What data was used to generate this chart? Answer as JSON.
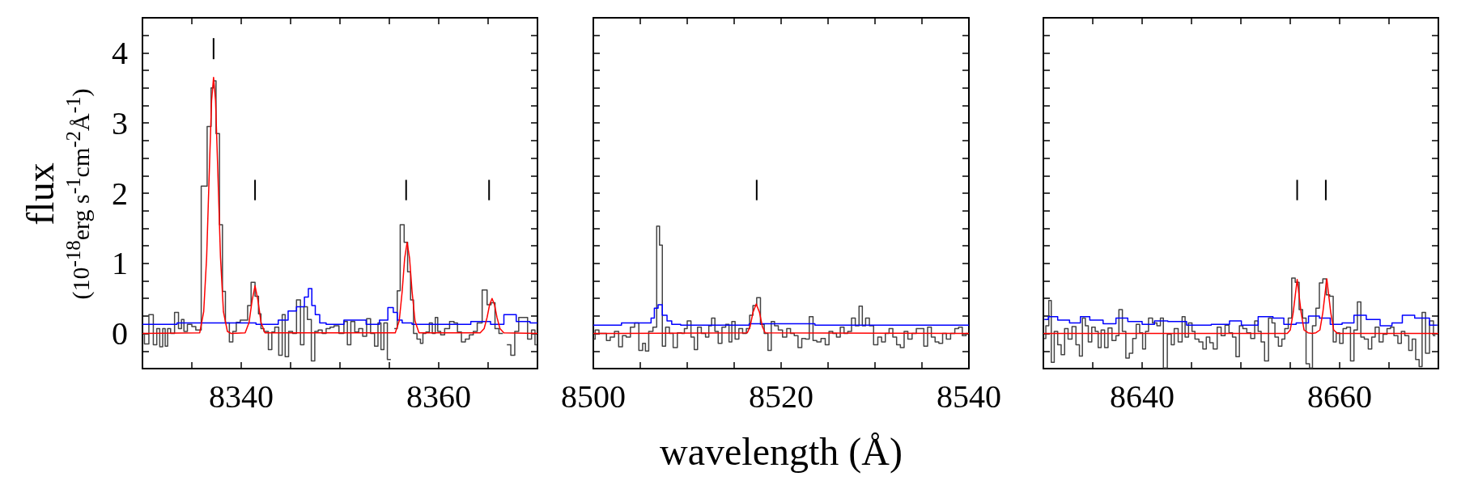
{
  "chart_data": [
    {
      "type": "step",
      "ylabel": "flux\n(10$^{-18}$erg s$^{-1}$cm$^{-2}$Å$^{-1}$)",
      "xlim": [
        8330,
        8370
      ],
      "xticks": [
        {
          "value": 8330,
          "label": null
        },
        {
          "value": 8335,
          "label": null
        },
        8340,
        {
          "value": 8345,
          "label": null
        },
        {
          "value": 8350,
          "label": null
        },
        {
          "value": 8355,
          "label": null
        },
        8360,
        {
          "value": 8365,
          "label": null
        },
        {
          "value": 8370,
          "label": null
        }
      ],
      "ylim": [
        -0.5,
        4.5
      ],
      "yticks": [
        {
          "value": -0.25,
          "label": null
        },
        0,
        {
          "value": 0.25,
          "label": null
        },
        {
          "value": 0.5,
          "label": null
        },
        {
          "value": 0.75,
          "label": null
        },
        1,
        {
          "value": 1.25,
          "label": null
        },
        {
          "value": 1.5,
          "label": null
        },
        {
          "value": 1.75,
          "label": null
        },
        2,
        {
          "value": 2.25,
          "label": null
        },
        {
          "value": 2.5,
          "label": null
        },
        {
          "value": 2.75,
          "label": null
        },
        3,
        {
          "value": 3.25,
          "label": null
        },
        {
          "value": 3.5,
          "label": null
        },
        {
          "value": 3.75,
          "label": null
        },
        4,
        {
          "value": 4.25,
          "label": null
        }
      ],
      "series": [
        {
          "type": "step",
          "color": "#444444",
          "x": [
            8330.0,
            8330.4,
            8330.9,
            8331.3,
            8331.6,
            8331.9,
            8332.2,
            8332.4,
            8332.7,
            8333.0,
            8333.5,
            8333.8,
            8334.1,
            8334.3,
            8334.8,
            8335.2,
            8335.6,
            8336.3,
            8336.8,
            8337.1,
            8337.3,
            8337.6,
            8338.0,
            8338.2,
            8338.6,
            8339.0,
            8339.3,
            8339.7,
            8340.1,
            8340.5,
            8340.8,
            8341.2,
            8341.6,
            8341.9,
            8342.1,
            8342.5,
            8343.0,
            8343.2,
            8343.6,
            8344.0,
            8344.3,
            8344.6,
            8345.0,
            8345.4,
            8345.8,
            8346.2,
            8346.5,
            8346.9,
            8347.3,
            8347.6,
            8348.0,
            8348.4,
            8348.8,
            8349.2,
            8349.6,
            8350.2,
            8350.6,
            8350.9,
            8351.3,
            8351.7,
            8352.1,
            8352.5,
            8352.9,
            8353.3,
            8353.7,
            8354.0,
            8354.3,
            8354.6,
            8355.0,
            8355.3,
            8355.7,
            8355.9,
            8356.3,
            8356.7,
            8357.0,
            8357.3,
            8357.6,
            8358.0,
            8358.3,
            8358.5,
            8358.9,
            8359.2,
            8359.5,
            8359.8,
            8360.0,
            8360.4,
            8360.8,
            8361.4,
            8361.7,
            8362.1,
            8362.5,
            8362.9,
            8363.3,
            8363.7,
            8364.1,
            8364.7,
            8365.1,
            8365.5,
            8365.9,
            8366.3,
            8366.7,
            8367.1,
            8367.5,
            8367.9,
            8368.3,
            8368.8,
            8369.2,
            8369.6,
            8369.9
          ],
          "values": [
            0,
            -0.15,
            0.27,
            -0.16,
            0.07,
            -0.19,
            0.07,
            -0.18,
            0.07,
            0,
            0.3,
            0.07,
            0.2,
            0.03,
            0.13,
            0.1,
            0.05,
            2.1,
            2.95,
            3.5,
            3.6,
            2.85,
            1.55,
            0.6,
            0.15,
            -0.12,
            0.03,
            0.16,
            0.19,
            0.19,
            0.4,
            0.73,
            0.53,
            0.28,
            0.07,
            0.03,
            -0.23,
            0.02,
            0.09,
            -0.31,
            0.27,
            -0.33,
            0.03,
            0,
            0.48,
            -0.16,
            0.38,
            0.2,
            -0.39,
            0.03,
            0.05,
            0,
            0.07,
            0.09,
            0.11,
            0,
            0.17,
            -0.16,
            0.17,
            0.02,
            0.07,
            -0.04,
            0.21,
            0,
            -0.18,
            0.15,
            -0.23,
            0.15,
            -0.37,
            null,
            0.07,
            0.61,
            1.55,
            1.3,
            0.88,
            0.48,
            0,
            -0.08,
            -0.14,
            0,
            0.02,
            0.15,
            0,
            0.23,
            0.03,
            -0.02,
            0.07,
            0.17,
            0.15,
            0.02,
            -0.12,
            -0.08,
            -0.02,
            0.03,
            0.15,
            0.62,
            0.41,
            0.44,
            0.07,
            0,
            null,
            -0.16,
            -0.31,
            0.03,
            0.23,
            0.23,
            -0.08,
            0.05,
            -0.16
          ]
        },
        {
          "type": "step",
          "color": "#0000ff",
          "x": [
            8330,
            8337,
            8340,
            8343,
            8344.5,
            8345,
            8346.2,
            8346.6,
            8347,
            8347.3,
            8347.7,
            8348.2,
            8349,
            8351.8,
            8353.5,
            8354.5,
            8355.2,
            8355.6,
            8356,
            8356.6,
            8358,
            8362,
            8364.5,
            8366,
            8367.2,
            8368.5,
            8370
          ],
          "values": [
            0.13,
            0.15,
            0.15,
            0.13,
            0.19,
            0.32,
            0.38,
            0.52,
            0.64,
            0.4,
            0.27,
            0.15,
            0.13,
            0.19,
            0.13,
            0.19,
            0.37,
            0.3,
            0.19,
            0.15,
            0.13,
            0.13,
            0.17,
            0.13,
            0.27,
            0.17,
            0.15
          ]
        },
        {
          "type": "line",
          "color": "#ff0000",
          "x": [
            8330,
            8335.8,
            8336.2,
            8336.5,
            8336.8,
            8337.0,
            8337.2,
            8337.4,
            8337.6,
            8337.9,
            8338.2,
            8338.6,
            8339,
            8340.4,
            8340.8,
            8341.1,
            8341.4,
            8341.7,
            8342.0,
            8342.4,
            8355.6,
            8356.0,
            8356.3,
            8356.55,
            8356.8,
            8357.05,
            8357.3,
            8357.6,
            8358.0,
            8364.2,
            8364.6,
            8364.9,
            8365.15,
            8365.4,
            8365.65,
            8365.9,
            8366.2,
            8366.6,
            8370
          ],
          "values": [
            0,
            0.01,
            0.31,
            1.09,
            2.45,
            3.32,
            3.65,
            3.32,
            2.45,
            1.09,
            0.31,
            0.03,
            0,
            0.01,
            0.16,
            0.47,
            0.68,
            0.47,
            0.16,
            0.01,
            0.01,
            0.18,
            0.6,
            1.07,
            1.3,
            1.07,
            0.6,
            0.18,
            0.01,
            0.01,
            0.07,
            0.23,
            0.41,
            0.5,
            0.41,
            0.23,
            0.07,
            0.01,
            0
          ]
        },
        {
          "type": "line",
          "color": "#000000",
          "x": [
            8337.2,
            8337.2
          ],
          "values": [
            3.91,
            4.21
          ]
        },
        {
          "type": "line",
          "color": "#000000",
          "x": [
            8341.4,
            8341.4
          ],
          "values": [
            1.9,
            2.19
          ]
        },
        {
          "type": "line",
          "color": "#000000",
          "x": [
            8356.7,
            8356.7
          ],
          "values": [
            1.9,
            2.19
          ]
        },
        {
          "type": "line",
          "color": "#000000",
          "x": [
            8365.1,
            8365.1
          ],
          "values": [
            1.9,
            2.19
          ]
        }
      ]
    },
    {
      "type": "step",
      "xlabel": "wavelength (Å)",
      "tick_labels": "x",
      "xlim": [
        8500,
        8540
      ],
      "xticks": [
        8500,
        {
          "value": 8505,
          "label": null
        },
        {
          "value": 8510,
          "label": null
        },
        {
          "value": 8515,
          "label": null
        },
        8520,
        {
          "value": 8525,
          "label": null
        },
        {
          "value": 8530,
          "label": null
        },
        {
          "value": 8535,
          "label": null
        },
        8540
      ],
      "ylim": [
        -0.5,
        4.5
      ],
      "yticks": [
        {
          "value": -0.25,
          "label": null
        },
        {
          "value": 0,
          "label": null
        },
        {
          "value": 0.25,
          "label": null
        },
        {
          "value": 0.5,
          "label": null
        },
        {
          "value": 0.75,
          "label": null
        },
        {
          "value": 1,
          "label": null
        },
        {
          "value": 1.25,
          "label": null
        },
        {
          "value": 1.5,
          "label": null
        },
        {
          "value": 1.75,
          "label": null
        },
        {
          "value": 2,
          "label": null
        },
        {
          "value": 2.25,
          "label": null
        },
        {
          "value": 2.5,
          "label": null
        },
        {
          "value": 2.75,
          "label": null
        },
        {
          "value": 3,
          "label": null
        },
        {
          "value": 3.25,
          "label": null
        },
        {
          "value": 3.5,
          "label": null
        },
        {
          "value": 3.75,
          "label": null
        },
        {
          "value": 4,
          "label": null
        },
        {
          "value": 4.25,
          "label": null
        }
      ],
      "series": [
        {
          "type": "step",
          "color": "#444444",
          "x": [
            8500.0,
            8500.4,
            8500.8,
            8501.2,
            8501.6,
            8502.0,
            8502.5,
            8502.9,
            8503.3,
            8503.7,
            8504.2,
            8504.6,
            8505.1,
            8505.4,
            8505.7,
            8506.1,
            8506.6,
            8506.9,
            8507.2,
            8507.5,
            8507.9,
            8508.3,
            8508.7,
            8509.2,
            8509.6,
            8509.8,
            8510.2,
            8510.6,
            8510.9,
            8511.3,
            8511.7,
            8512.2,
            8512.4,
            8512.8,
            8513.1,
            8513.5,
            8513.9,
            8514.3,
            8514.6,
            8514.9,
            8515.3,
            8515.7,
            8516.1,
            8516.5,
            8516.8,
            8517.2,
            8517.6,
            8518.0,
            8518.4,
            8518.8,
            8519.1,
            8519.5,
            8519.9,
            8520.4,
            8520.8,
            8521.2,
            8521.6,
            8522.0,
            8522.4,
            8522.8,
            8523.2,
            8523.6,
            8524.0,
            8524.5,
            8524.9,
            8525.3,
            8525.7,
            8526.1,
            8526.5,
            8526.9,
            8527.3,
            8527.7,
            8528.1,
            8528.5,
            8528.8,
            8529.2,
            8529.6,
            8530.1,
            8530.5,
            8530.9,
            8531.3,
            8531.7,
            8532.1,
            8532.5,
            8532.9,
            8533.3,
            8533.7,
            8534.2,
            8534.6,
            8535.0,
            8535.4,
            8535.8,
            8536.2,
            8536.6,
            8537.0,
            8537.4,
            8537.8,
            8538.3,
            8538.7,
            8539.1,
            8539.5,
            8539.9
          ],
          "values": [
            -0.08,
            0.05,
            0,
            0,
            -0.1,
            -0.05,
            0.03,
            -0.19,
            -0.03,
            -0.05,
            0.09,
            0.15,
            -0.24,
            -0.14,
            -0.25,
            0.03,
            0.09,
            1.53,
            1.26,
            -0.18,
            0.09,
            0,
            -0.2,
            0.01,
            0,
            0.07,
            0.18,
            -0.05,
            -0.23,
            0.09,
            0,
            -0.05,
            0.11,
            0.22,
            0.03,
            -0.14,
            0.09,
            0.13,
            -0.12,
            0.17,
            -0.08,
            0.07,
            0,
            0.07,
            0.26,
            0.4,
            0.51,
            0.13,
            0,
            -0.24,
            0.17,
            0.11,
            0.05,
            -0.05,
            0.07,
            0,
            -0.03,
            -0.2,
            -0.07,
            -0.08,
            0.24,
            -0.1,
            -0.12,
            -0.07,
            -0.16,
            0.03,
            0,
            -0.05,
            0.09,
            0,
            0.03,
            0.22,
            0.11,
            0.39,
            0.11,
            0.22,
            0.11,
            -0.16,
            -0.05,
            -0.12,
            0,
            0.07,
            -0.05,
            -0.16,
            -0.2,
            0.03,
            -0.08,
            0,
            0.07,
            0.07,
            -0.18,
            0.09,
            -0.05,
            -0.12,
            -0.14,
            0,
            -0.08,
            0,
            0.07,
            0.09,
            -0.03,
            0
          ]
        },
        {
          "type": "step",
          "color": "#0000ff",
          "x": [
            8500,
            8506,
            8506.3,
            8506.7,
            8507.1,
            8507.6,
            8508.1,
            8508.6,
            8510,
            8523.2,
            8524,
            8540
          ],
          "values": [
            0.12,
            0.15,
            0.22,
            0.36,
            0.41,
            0.26,
            0.18,
            0.13,
            0.12,
            0.14,
            0.12,
            0.12
          ]
        },
        {
          "type": "line",
          "color": "#ff0000",
          "x": [
            8500,
            8516.4,
            8516.7,
            8517.0,
            8517.35,
            8517.7,
            8518.0,
            8518.3,
            8540
          ],
          "values": [
            0,
            0.01,
            0.1,
            0.3,
            0.42,
            0.3,
            0.1,
            0.01,
            0
          ]
        },
        {
          "type": "line",
          "color": "#000000",
          "x": [
            8517.4,
            8517.4
          ],
          "values": [
            1.9,
            2.19
          ]
        }
      ]
    },
    {
      "type": "step",
      "tick_labels": "x",
      "xlim": [
        8630,
        8670
      ],
      "xticks": [
        {
          "value": 8630,
          "label": null
        },
        {
          "value": 8635,
          "label": null
        },
        8640,
        {
          "value": 8645,
          "label": null
        },
        {
          "value": 8650,
          "label": null
        },
        {
          "value": 8655,
          "label": null
        },
        8660,
        {
          "value": 8665,
          "label": null
        },
        {
          "value": 8670,
          "label": null
        }
      ],
      "ylim": [
        -0.5,
        4.5
      ],
      "yticks": [
        {
          "value": -0.25,
          "label": null
        },
        {
          "value": 0,
          "label": null
        },
        {
          "value": 0.25,
          "label": null
        },
        {
          "value": 0.5,
          "label": null
        },
        {
          "value": 0.75,
          "label": null
        },
        {
          "value": 1,
          "label": null
        },
        {
          "value": 1.25,
          "label": null
        },
        {
          "value": 1.5,
          "label": null
        },
        {
          "value": 1.75,
          "label": null
        },
        {
          "value": 2,
          "label": null
        },
        {
          "value": 2.25,
          "label": null
        },
        {
          "value": 2.5,
          "label": null
        },
        {
          "value": 2.75,
          "label": null
        },
        {
          "value": 3,
          "label": null
        },
        {
          "value": 3.25,
          "label": null
        },
        {
          "value": 3.5,
          "label": null
        },
        {
          "value": 3.75,
          "label": null
        },
        {
          "value": 4,
          "label": null
        },
        {
          "value": 4.25,
          "label": null
        }
      ],
      "series": [
        {
          "type": "step",
          "color": "#444444",
          "x": [
            8630.1,
            8630.4,
            8630.7,
            8630.9,
            8631.3,
            8631.6,
            8632.0,
            8632.3,
            8632.7,
            8633.1,
            8633.5,
            8633.8,
            8634.1,
            8634.4,
            8634.7,
            8635.1,
            8635.4,
            8635.7,
            8636.0,
            8636.4,
            8636.7,
            8637.2,
            8637.5,
            8637.8,
            8638.2,
            8638.5,
            8638.9,
            8639.2,
            8639.6,
            8639.9,
            8640.2,
            8640.5,
            8640.8,
            8641.3,
            8641.7,
            8642.0,
            8642.3,
            8642.8,
            8643.1,
            8643.4,
            8643.9,
            8644.2,
            8644.5,
            8644.9,
            8645.2,
            8645.5,
            8646.0,
            8646.3,
            8646.7,
            8647.0,
            8647.4,
            8647.8,
            8648.2,
            8648.6,
            8649.0,
            8649.3,
            8649.7,
            8650.0,
            8650.4,
            8650.8,
            8651.2,
            8651.6,
            8651.9,
            8652.2,
            8652.6,
            8653.0,
            8653.3,
            8653.6,
            8654.0,
            8654.3,
            8654.6,
            8655.0,
            8655.3,
            8655.7,
            8656.1,
            8656.4,
            8656.8,
            8657.1,
            8657.4,
            8657.8,
            8658.1,
            8658.5,
            8658.8,
            8659.2,
            8659.5,
            8659.8,
            8660.2,
            8660.5,
            8660.9,
            8661.3,
            8661.6,
            8662.0,
            8662.3,
            8662.7,
            8663.1,
            8663.4,
            8663.8,
            8664.2,
            8664.6,
            8665.0,
            8665.3,
            8665.7,
            8666.1,
            8666.4,
            8666.8,
            8667.2,
            8667.5,
            8667.9,
            8668.2,
            8668.5,
            8668.9,
            8669.3,
            8669.7
          ],
          "values": [
            -0.07,
            0.11,
            0.47,
            -0.41,
            0.03,
            -0.16,
            -0.3,
            0.07,
            -0.08,
            0.1,
            -0.16,
            -0.32,
            0.22,
            0.11,
            -0.12,
            0.09,
            0.03,
            -0.2,
            0.05,
            -0.2,
            0.08,
            -0.1,
            -0.03,
            0.34,
            0.03,
            -0.35,
            -0.28,
            -0.07,
            0.13,
            0.01,
            -0.22,
            0.03,
            0.22,
            0.15,
            0.11,
            0.22,
            -0.49,
            -0.01,
            -0.16,
            0.07,
            -0.12,
            0.24,
            -0.05,
            0.15,
            0.03,
            -0.08,
            -0.12,
            -0.22,
            -0.05,
            -0.13,
            -0.22,
            0.09,
            -0.03,
            0.12,
            0.01,
            -0.05,
            -0.33,
            0.11,
            0.07,
            0.01,
            -0.07,
            0.18,
            0.03,
            -0.12,
            -0.39,
            0.22,
            0.15,
            -0.05,
            -0.18,
            -0.08,
            0.07,
            0.22,
            0.79,
            0.73,
            0.34,
            0.22,
            -0.43,
            -0.49,
            0.11,
            0.36,
            0.72,
            0.78,
            0.55,
            0.53,
            -0.12,
            0.01,
            -0.14,
            0.07,
            0.09,
            -0.39,
            0.05,
            0.45,
            -0.05,
            -0.08,
            -0.22,
            -0.05,
            0.09,
            -0.12,
            -0.01,
            0.07,
            0.09,
            -0.03,
            -0.14,
            0.03,
            -0.03,
            -0.24,
            -0.08,
            -0.37,
            -0.47,
            0.3,
            -0.28,
            0.18,
            -0.03
          ]
        },
        {
          "type": "step",
          "color": "#0000ff",
          "x": [
            8630.1,
            8630.9,
            8632.0,
            8633.3,
            8634.2,
            8635.2,
            8636.9,
            8637.8,
            8639.3,
            8640.7,
            8641.8,
            8643.4,
            8645.6,
            8648.4,
            8649.3,
            8650.8,
            8652.7,
            8653.8,
            8654.9,
            8656.3,
            8657.4,
            8658.5,
            8659.6,
            8660.9,
            8662.0,
            8663.4,
            8664.8,
            8665.8,
            8666.9,
            8668.3,
            8669.9
          ],
          "values": [
            0.2,
            0.24,
            0.19,
            0.15,
            0.24,
            0.19,
            0.14,
            0.22,
            0.17,
            0.13,
            0.18,
            0.17,
            0.12,
            0.13,
            0.18,
            0.12,
            0.24,
            0.22,
            0.13,
            0.15,
            0.25,
            0.22,
            0.13,
            0.15,
            0.26,
            0.2,
            0.11,
            0.15,
            0.26,
            0.22,
            0.12
          ]
        },
        {
          "type": "line",
          "color": "#ff0000",
          "x": [
            8630,
            8654.7,
            8655.0,
            8655.3,
            8655.7,
            8656.1,
            8656.4,
            8656.8,
            8657.2,
            8657.6,
            8658.0,
            8658.3,
            8658.7,
            8659.1,
            8659.4,
            8659.8,
            8670
          ],
          "values": [
            0,
            0,
            0.05,
            0.3,
            0.77,
            0.3,
            0.05,
            0.01,
            0,
            0.01,
            0.05,
            0.3,
            0.78,
            0.3,
            0.05,
            0,
            0
          ]
        },
        {
          "type": "line",
          "color": "#000000",
          "x": [
            8655.7,
            8655.7
          ],
          "values": [
            1.9,
            2.19
          ]
        },
        {
          "type": "line",
          "color": "#000000",
          "x": [
            8658.6,
            8658.6
          ],
          "values": [
            1.9,
            2.19
          ]
        }
      ]
    }
  ]
}
